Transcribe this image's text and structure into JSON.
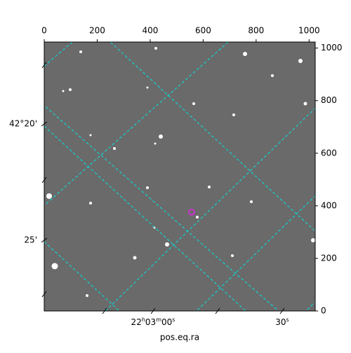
{
  "chart_data": {
    "type": "image",
    "xlabel": "pos.eq.ra",
    "xlim": [
      0,
      1023
    ],
    "ylim": [
      0,
      1023
    ],
    "xticks": [
      0,
      200,
      400,
      600,
      800,
      1000
    ],
    "yticks": [
      0,
      200,
      400,
      600,
      800,
      1000
    ],
    "ra_tick_labels": [
      "22h03m00s",
      "30s"
    ],
    "dec_tick_labels": [
      "42°20'",
      "25'"
    ],
    "marker_color": "#cc33cc",
    "grid_color": "#00e5e5"
  }
}
